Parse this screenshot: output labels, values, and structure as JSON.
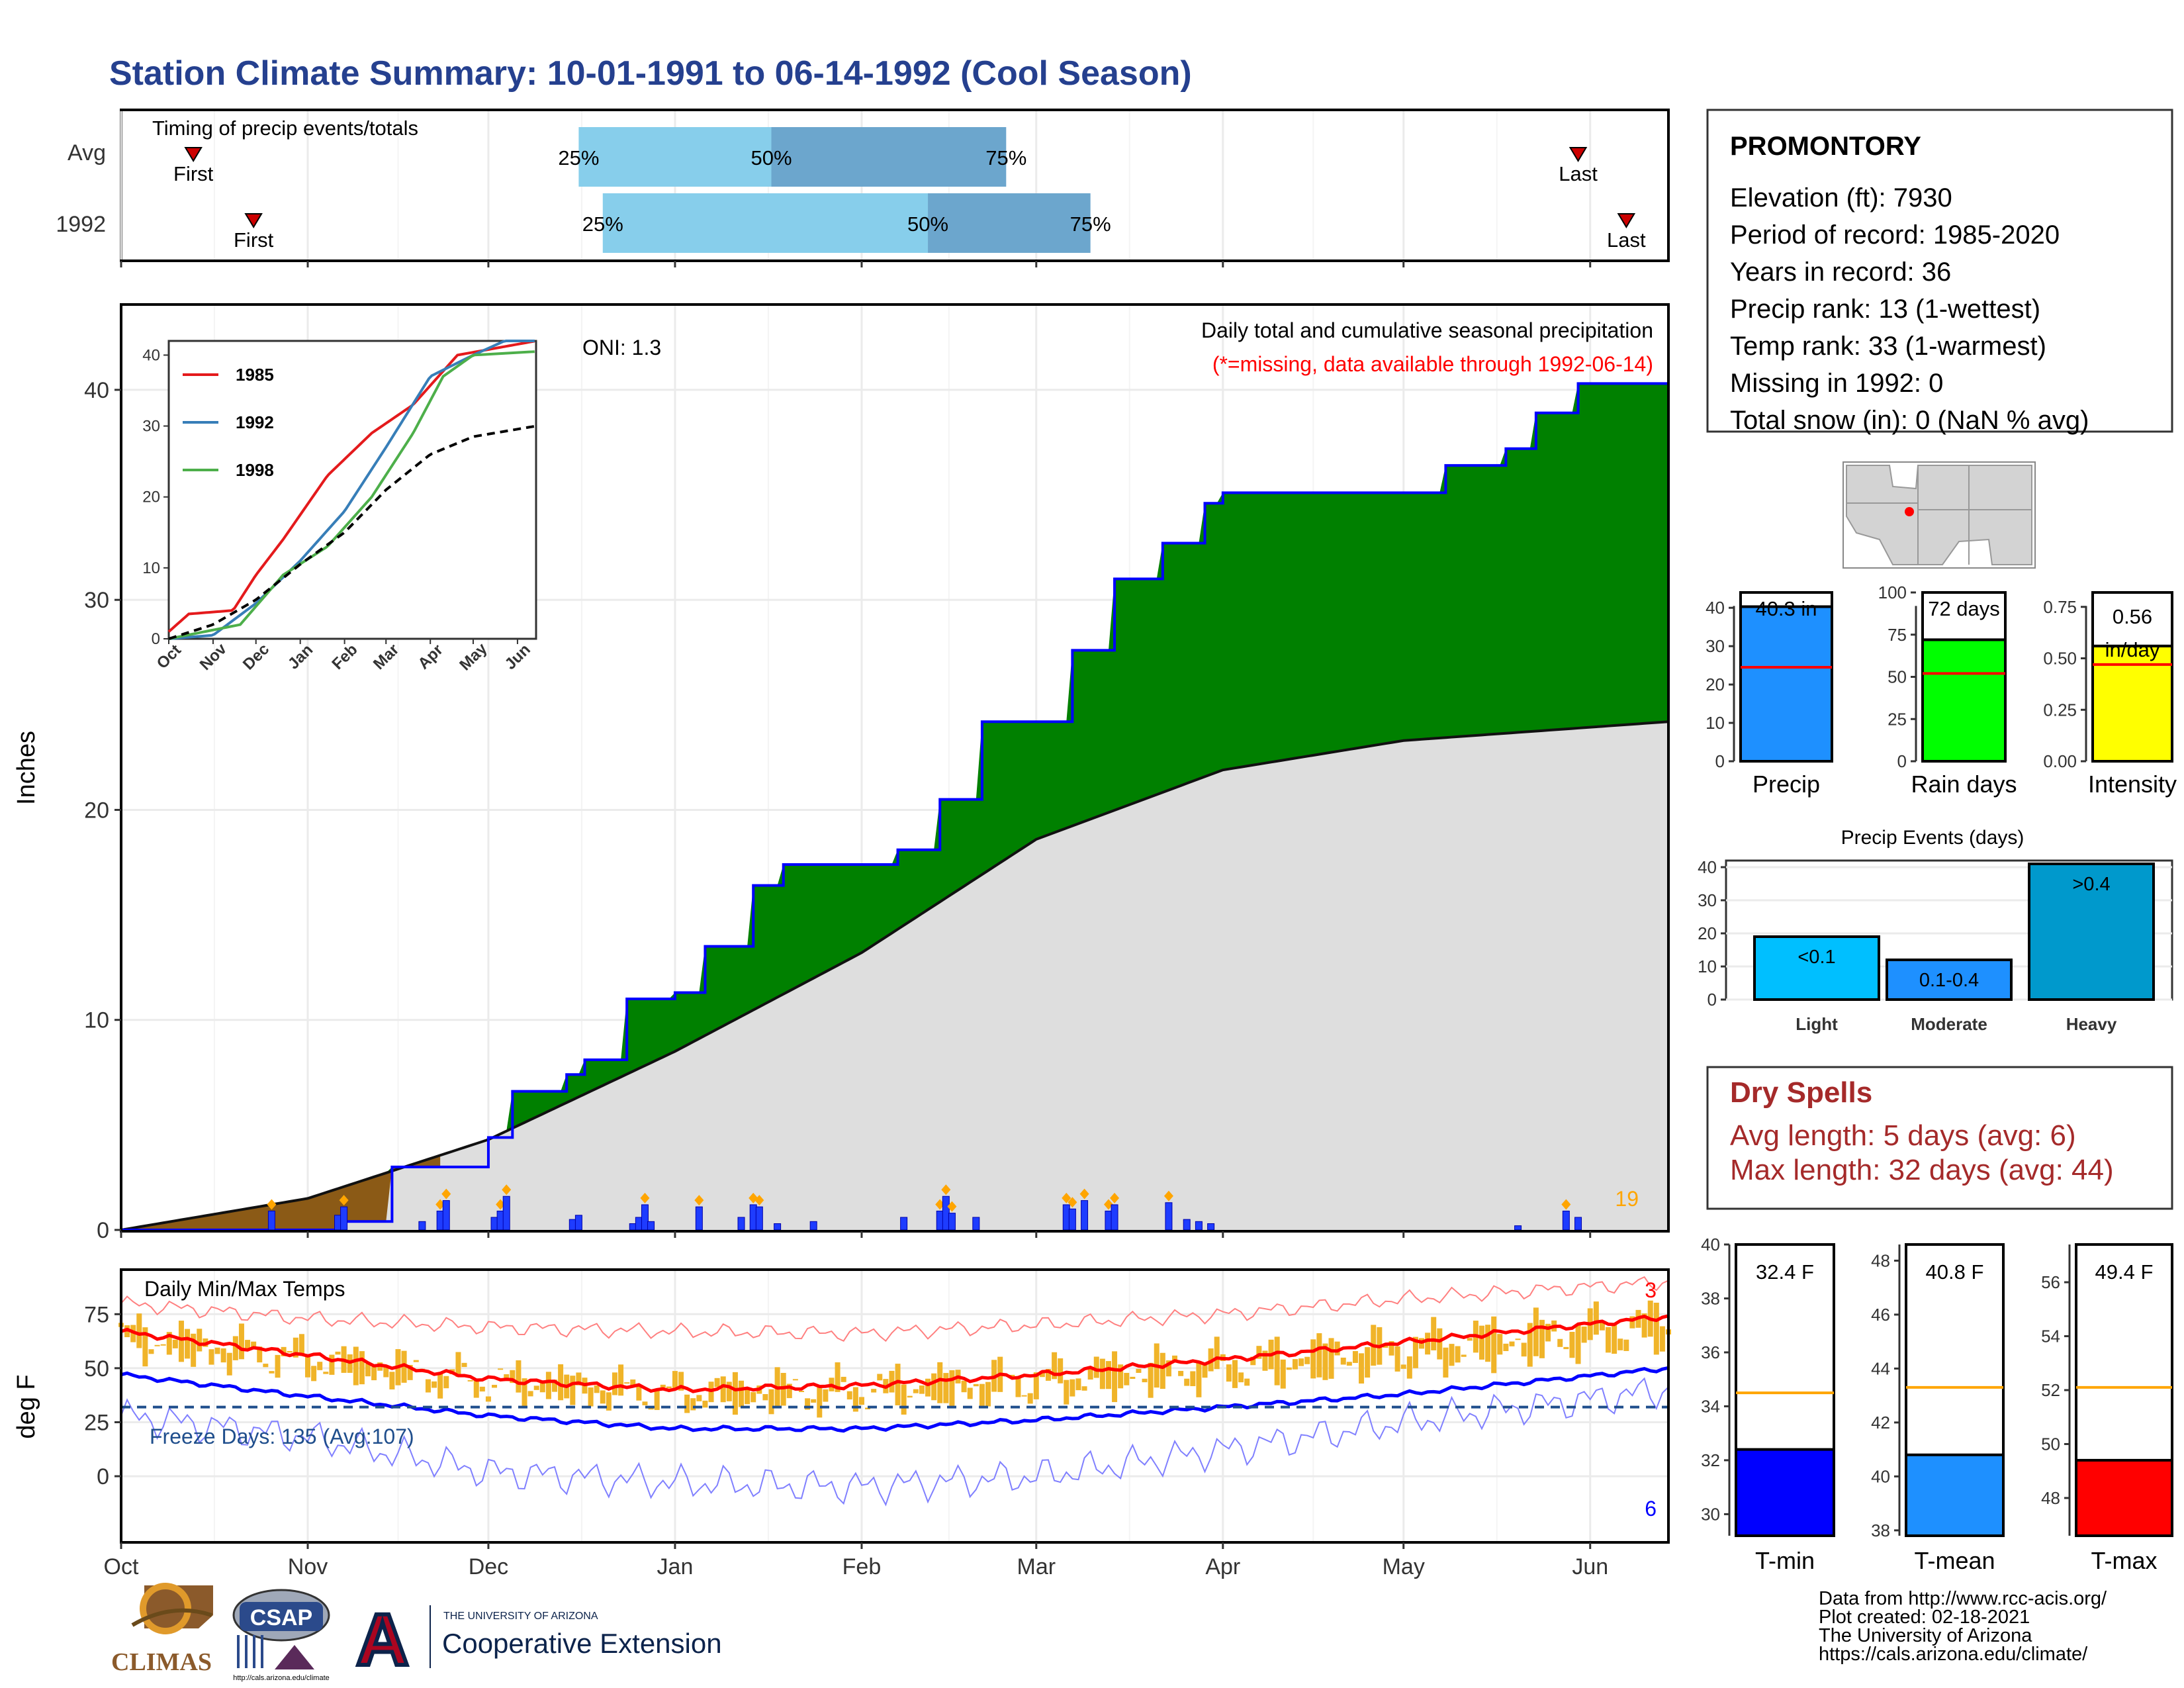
{
  "title": "Station Climate Summary: 10-01-1991 to 06-14-1992 (Cool Season)",
  "station": {
    "name": "PROMONTORY",
    "lines": [
      "Elevation (ft): 7930",
      "Period of record: 1985-2020",
      "Years in record: 36",
      "Precip rank: 13 (1-wettest)",
      "Temp rank: 33 (1-warmest)",
      "Missing in 1992: 0",
      "Total snow (in): 0 (NaN % avg)"
    ]
  },
  "timing": {
    "title": "Timing of precip events/totals",
    "rows": [
      {
        "label": "Avg",
        "first_label": "First",
        "last_label": "Last",
        "first": "1991-10-13",
        "p25": "1991-12-16",
        "p50": "1992-01-17",
        "p75": "1992-02-25",
        "last": "1992-05-30",
        "p25_label": "25%",
        "p50_label": "50%",
        "p75_label": "75%"
      },
      {
        "label": "1992",
        "first_label": "First",
        "last_label": "Last",
        "first": "1991-10-23",
        "p25": "1991-12-20",
        "p50": "1992-02-12",
        "p75": "1992-03-10",
        "last": "1992-06-07",
        "p25_label": "25%",
        "p50_label": "50%",
        "p75_label": "75%"
      }
    ]
  },
  "main_chart": {
    "ylabel": "Inches",
    "title": "Daily total and cumulative seasonal precipitation",
    "subtitle": "(*=missing, data available through 1992-06-14)",
    "oni": "ONI: 1.3",
    "count_label": "19",
    "yticks": [
      "0",
      "10",
      "20",
      "30",
      "40"
    ]
  },
  "inset": {
    "xticks": [
      "Oct",
      "Nov",
      "Dec",
      "Jan",
      "Feb",
      "Mar",
      "Apr",
      "May",
      "Jun"
    ],
    "yticks": [
      "0",
      "10",
      "20",
      "30",
      "40"
    ],
    "legend": [
      {
        "name": "1985",
        "color": "#e41a1c"
      },
      {
        "name": "1992",
        "color": "#377eb8"
      },
      {
        "name": "1998",
        "color": "#4daf4a"
      }
    ]
  },
  "temp_chart": {
    "ylabel": "deg F",
    "title": "Daily Min/Max Temps",
    "freeze": "Freeze Days: 135 (Avg:107)",
    "count_hi": "3",
    "count_lo": "6",
    "yticks": [
      "0",
      "25",
      "50",
      "75"
    ]
  },
  "months": [
    "Oct",
    "Nov",
    "Dec",
    "Jan",
    "Feb",
    "Mar",
    "Apr",
    "May",
    "Jun"
  ],
  "bars_top": [
    {
      "id": "precip",
      "xlabel": "Precip",
      "value": 40.3,
      "value_label": "40.3 in",
      "avg": 24.5,
      "ymax": 44,
      "yticks": [
        "0",
        "10",
        "20",
        "30",
        "40"
      ],
      "color": "#1e90ff"
    },
    {
      "id": "raindays",
      "xlabel": "Rain days",
      "value": 72,
      "value_label": "72 days",
      "avg": 52,
      "ymax": 100,
      "yticks": [
        "0",
        "25",
        "50",
        "75",
        "100"
      ],
      "color": "#00ff00"
    },
    {
      "id": "intensity",
      "xlabel": "Intensity",
      "value": 0.56,
      "value_label": "0.56 in/day",
      "avg": 0.47,
      "ymax": 0.82,
      "yticks": [
        "0.00",
        "0.25",
        "0.50",
        "0.75"
      ],
      "color": "#ffff00"
    }
  ],
  "events": {
    "title": "Precip Events (days)",
    "yticks": [
      "0",
      "10",
      "20",
      "30",
      "40"
    ],
    "bars": [
      {
        "label": "Light",
        "text": "<0.1",
        "value": 19,
        "color": "#00bfff"
      },
      {
        "label": "Moderate",
        "text": "0.1-0.4",
        "value": 12,
        "color": "#1e90ff"
      },
      {
        "label": "Heavy",
        "text": ">0.4",
        "value": 41,
        "color": "#0099cc"
      }
    ]
  },
  "dry_spells": {
    "title": "Dry Spells",
    "avg": "Avg length: 5 days (avg: 6)",
    "max": "Max length: 32 days (avg: 44)"
  },
  "temp_bars": [
    {
      "xlabel": "T-min",
      "value": 32.4,
      "value_label": "32.4 F",
      "avg": 34.5,
      "ymin": 29.2,
      "ymax": 40.0,
      "yticks": [
        30,
        32,
        34,
        36,
        38,
        40
      ],
      "color": "#0000ff"
    },
    {
      "xlabel": "T-mean",
      "value": 40.8,
      "value_label": "40.8 F",
      "avg": 43.3,
      "ymin": 37.8,
      "ymax": 48.6,
      "yticks": [
        38,
        40,
        42,
        44,
        46,
        48
      ],
      "color": "#1e90ff"
    },
    {
      "xlabel": "T-max",
      "value": 49.4,
      "value_label": "49.4 F",
      "avg": 52.1,
      "ymin": 46.6,
      "ymax": 57.4,
      "yticks": [
        48,
        50,
        52,
        54,
        56
      ],
      "color": "#ff0000"
    }
  ],
  "footer": {
    "lines": [
      "Data from http://www.rcc-acis.org/",
      "Plot created: 02-18-2021",
      "The University of Arizona",
      "https://cals.arizona.edu/climate/"
    ],
    "logo_climas": "CLIMAS",
    "logo_csap": "CSAP",
    "logo_csap_url": "http://cals.arizona.edu/climate",
    "ua_small": "THE UNIVERSITY OF ARIZONA",
    "ua_big": "Cooperative Extension",
    "ua_letter": "A"
  },
  "chart_data": [
    {
      "type": "area",
      "title": "Daily total and cumulative seasonal precipitation",
      "xlabel": "",
      "ylabel": "Inches",
      "ylim": [
        0,
        44
      ],
      "x_range": [
        "1991-10-01",
        "1992-06-14"
      ],
      "series": [
        {
          "name": "",
          "color": "#008000",
          "points": [
            [
              "1991-10-01",
              0
            ],
            [
              "1991-11-07",
              0.4
            ],
            [
              "1991-11-15",
              3.0
            ],
            [
              "1991-12-01",
              4.4
            ],
            [
              "1991-12-05",
              6.6
            ],
            [
              "1991-12-14",
              7.4
            ],
            [
              "1991-12-17",
              8.1
            ],
            [
              "1991-12-24",
              11.0
            ],
            [
              "1992-01-01",
              11.3
            ],
            [
              "1992-01-06",
              13.5
            ],
            [
              "1992-01-14",
              16.4
            ],
            [
              "1992-01-19",
              17.4
            ],
            [
              "1992-02-07",
              18.1
            ],
            [
              "1992-02-14",
              20.5
            ],
            [
              "1992-02-21",
              24.2
            ],
            [
              "1992-03-07",
              27.6
            ],
            [
              "1992-03-14",
              31.0
            ],
            [
              "1992-03-22",
              32.7
            ],
            [
              "1992-03-29",
              34.6
            ],
            [
              "1992-04-01",
              35.1
            ],
            [
              "1992-05-03",
              35.1
            ],
            [
              "1992-05-08",
              36.4
            ],
            [
              "1992-05-18",
              37.2
            ],
            [
              "1992-05-23",
              38.9
            ],
            [
              "1992-05-30",
              40.3
            ],
            [
              "1992-06-14",
              40.3
            ]
          ]
        },
        {
          "name": "",
          "color": "#dedede",
          "points": [
            [
              "1991-10-01",
              0
            ],
            [
              "1991-11-01",
              1.5
            ],
            [
              "1991-12-01",
              4.3
            ],
            [
              "1992-01-01",
              8.5
            ],
            [
              "1992-02-01",
              13.2
            ],
            [
              "1992-03-01",
              18.6
            ],
            [
              "1992-04-01",
              21.9
            ],
            [
              "1992-05-01",
              23.3
            ],
            [
              "1992-06-14",
              24.2
            ]
          ]
        }
      ],
      "daily_bars": [
        [
          "1991-10-26",
          0.9
        ],
        [
          "1991-11-06",
          0.7
        ],
        [
          "1991-11-07",
          1.1
        ],
        [
          "1991-11-20",
          0.4
        ],
        [
          "1991-11-23",
          0.9
        ],
        [
          "1991-11-24",
          1.4
        ],
        [
          "1991-12-02",
          0.6
        ],
        [
          "1991-12-03",
          0.9
        ],
        [
          "1991-12-04",
          1.6
        ],
        [
          "1991-12-15",
          0.5
        ],
        [
          "1991-12-16",
          0.7
        ],
        [
          "1991-12-25",
          0.3
        ],
        [
          "1991-12-26",
          0.6
        ],
        [
          "1991-12-27",
          1.2
        ],
        [
          "1991-12-28",
          0.4
        ],
        [
          "1992-01-05",
          1.1
        ],
        [
          "1992-01-12",
          0.6
        ],
        [
          "1992-01-14",
          1.2
        ],
        [
          "1992-01-15",
          1.1
        ],
        [
          "1992-01-18",
          0.3
        ],
        [
          "1992-01-24",
          0.4
        ],
        [
          "1992-02-08",
          0.6
        ],
        [
          "1992-02-14",
          0.9
        ],
        [
          "1992-02-15",
          1.6
        ],
        [
          "1992-02-16",
          0.8
        ],
        [
          "1992-02-20",
          0.6
        ],
        [
          "1992-03-06",
          1.2
        ],
        [
          "1992-03-07",
          1.0
        ],
        [
          "1992-03-09",
          1.4
        ],
        [
          "1992-03-13",
          0.9
        ],
        [
          "1992-03-14",
          1.2
        ],
        [
          "1992-03-23",
          1.3
        ],
        [
          "1992-03-26",
          0.5
        ],
        [
          "1992-03-28",
          0.4
        ],
        [
          "1992-03-30",
          0.3
        ],
        [
          "1992-05-20",
          0.2
        ],
        [
          "1992-05-28",
          0.9
        ],
        [
          "1992-05-30",
          0.6
        ]
      ]
    },
    {
      "type": "line",
      "title": "",
      "ylim": [
        0,
        42
      ],
      "series": [
        {
          "name": "1985",
          "color": "#e41a1c",
          "points": [
            [
              "1991-10-01",
              1
            ],
            [
              "1991-10-15",
              3.5
            ],
            [
              "1991-11-15",
              4
            ],
            [
              "1991-12-01",
              9
            ],
            [
              "1991-12-20",
              14
            ],
            [
              "1992-01-20",
              23
            ],
            [
              "1992-02-20",
              29
            ],
            [
              "1992-03-20",
              33
            ],
            [
              "1992-04-20",
              40
            ],
            [
              "1992-06-14",
              42
            ]
          ]
        },
        {
          "name": "1992",
          "color": "#377eb8",
          "points": [
            [
              "1991-10-01",
              0
            ],
            [
              "1991-11-01",
              0.5
            ],
            [
              "1991-12-01",
              5
            ],
            [
              "1992-01-01",
              11
            ],
            [
              "1992-02-01",
              18
            ],
            [
              "1992-03-01",
              27
            ],
            [
              "1992-04-01",
              37
            ],
            [
              "1992-05-01",
              40
            ],
            [
              "1992-06-14",
              44
            ]
          ]
        },
        {
          "name": "1998",
          "color": "#4daf4a",
          "points": [
            [
              "1991-10-01",
              0
            ],
            [
              "1991-11-20",
              2
            ],
            [
              "1991-12-20",
              9
            ],
            [
              "1992-01-20",
              13
            ],
            [
              "1992-02-20",
              20
            ],
            [
              "1992-03-20",
              29
            ],
            [
              "1992-04-10",
              37
            ],
            [
              "1992-05-01",
              40
            ],
            [
              "1992-06-14",
              40.5
            ]
          ]
        },
        {
          "name": "",
          "color": "#000000",
          "points": [
            [
              "1991-10-01",
              0
            ],
            [
              "1991-11-01",
              2
            ],
            [
              "1991-12-01",
              5.5
            ],
            [
              "1992-01-01",
              10.5
            ],
            [
              "1992-02-01",
              15
            ],
            [
              "1992-03-01",
              21
            ],
            [
              "1992-04-01",
              26
            ],
            [
              "1992-05-01",
              28.5
            ],
            [
              "1992-06-14",
              30
            ]
          ]
        }
      ]
    },
    {
      "type": "line",
      "title": "Daily Min/Max Temps",
      "ylabel": "deg F",
      "ylim": [
        -30,
        95
      ],
      "series": [
        {
          "name": "",
          "color": "#ff0000",
          "points": [
            [
              "1991-10-01",
              67
            ],
            [
              "1991-11-01",
              56
            ],
            [
              "1991-12-01",
              45
            ],
            [
              "1992-01-01",
              40
            ],
            [
              "1992-02-01",
              42
            ],
            [
              "1992-03-01",
              47
            ],
            [
              "1992-04-01",
              54
            ],
            [
              "1992-05-01",
              62
            ],
            [
              "1992-06-14",
              74
            ]
          ]
        },
        {
          "name": "",
          "color": "#0000ff",
          "points": [
            [
              "1991-10-01",
              47
            ],
            [
              "1991-11-01",
              37
            ],
            [
              "1991-12-01",
              28
            ],
            [
              "1992-01-01",
              22
            ],
            [
              "1992-02-01",
              22
            ],
            [
              "1992-03-01",
              26
            ],
            [
              "1992-04-01",
              32
            ],
            [
              "1992-05-01",
              38
            ],
            [
              "1992-06-14",
              50
            ]
          ]
        },
        {
          "name": "",
          "color": "#ff8080",
          "points": [
            [
              "1991-10-01",
              80
            ],
            [
              "1991-11-01",
              73
            ],
            [
              "1991-12-01",
              69
            ],
            [
              "1992-01-01",
              67
            ],
            [
              "1992-02-01",
              66
            ],
            [
              "1992-03-01",
              70
            ],
            [
              "1992-04-01",
              75
            ],
            [
              "1992-05-01",
              82
            ],
            [
              "1992-06-14",
              90
            ]
          ]
        },
        {
          "name": "",
          "color": "#8080ff",
          "points": [
            [
              "1991-10-01",
              28
            ],
            [
              "1991-11-01",
              18
            ],
            [
              "1991-12-01",
              2
            ],
            [
              "1992-01-01",
              -3
            ],
            [
              "1992-02-01",
              -5
            ],
            [
              "1992-03-01",
              0
            ],
            [
              "1992-04-01",
              12
            ],
            [
              "1992-05-01",
              25
            ],
            [
              "1992-06-14",
              40
            ]
          ]
        }
      ],
      "freeze_line": 32
    }
  ]
}
